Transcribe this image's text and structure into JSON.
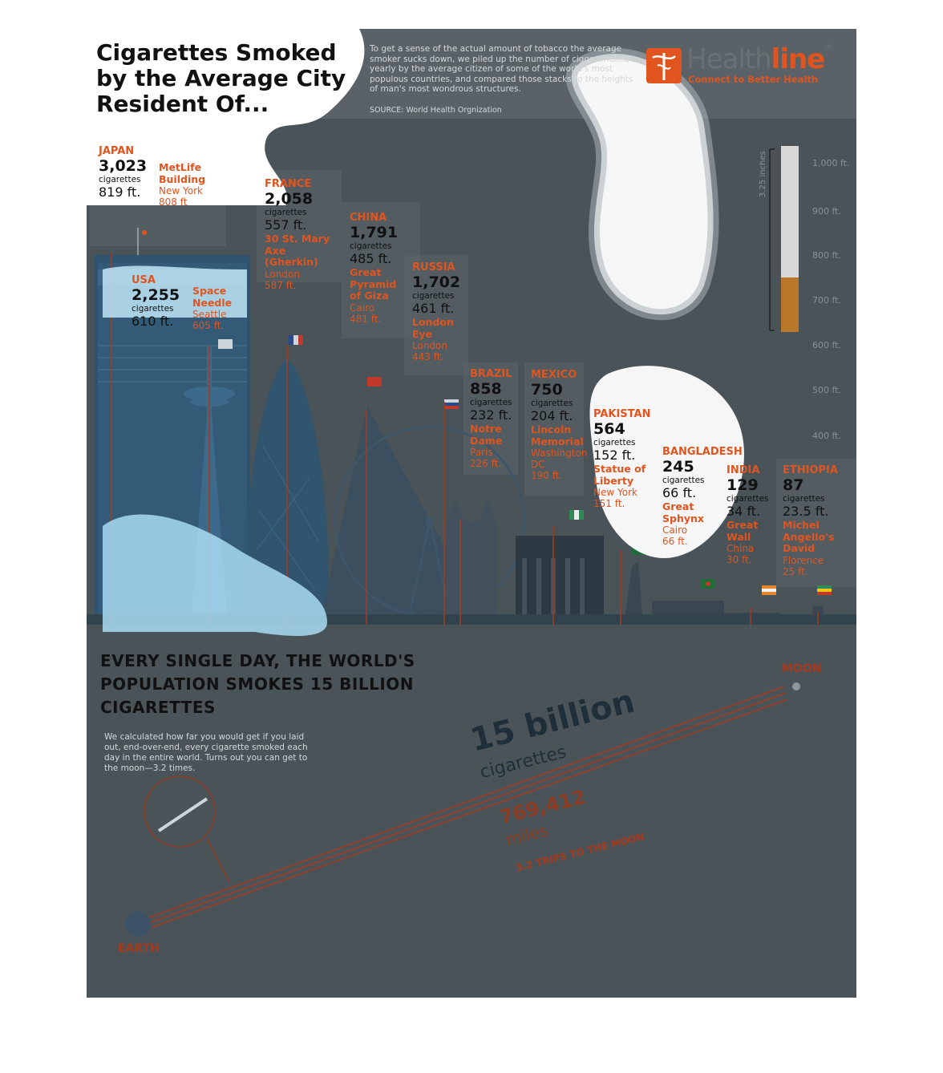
{
  "header": {
    "title": "Cigarettes Smoked by the Average City Resident Of...",
    "intro": "To get a sense of the actual amount of tobacco the average smoker sucks down, we piled up the number of ciggs smoked yearly by the average citizen of some of the world's most populous countries, and compared those stacks to the heights of man's most wondrous structures.",
    "source": "SOURCE: World Health Orgnization"
  },
  "logo": {
    "name_part1": "Health",
    "name_part2": "line",
    "reg": "®",
    "tagline": "Connect to Better Health"
  },
  "colors": {
    "accent": "#e1541e",
    "panel": "#4a5358",
    "dark_red": "#a63a1e"
  },
  "ruler": {
    "label": "3.25 inches",
    "ticks": [
      "1,000 ft.",
      "900 ft.",
      "800 ft.",
      "700 ft.",
      "600 ft.",
      "500 ft.",
      "400 ft."
    ]
  },
  "countries": [
    {
      "country": "JAPAN",
      "count": "3,023",
      "cig": "cigarettes",
      "height": "819 ft.",
      "building": "MetLife Building",
      "city": "New York",
      "bheight": "808 ft"
    },
    {
      "country": "USA",
      "count": "2,255",
      "cig": "cigarettes",
      "height": "610 ft.",
      "building": "Space Needle",
      "city": "Seattle",
      "bheight": "605 ft."
    },
    {
      "country": "FRANCE",
      "count": "2,058",
      "cig": "cigarettes",
      "height": "557 ft.",
      "building": "30 St. Mary Axe (Gherkin)",
      "city": "London",
      "bheight": "587 ft."
    },
    {
      "country": "CHINA",
      "count": "1,791",
      "cig": "cigarettes",
      "height": "485 ft.",
      "building": "Great Pyramid of Giza",
      "city": "Cairo",
      "bheight": "481 ft."
    },
    {
      "country": "RUSSIA",
      "count": "1,702",
      "cig": "cigarettes",
      "height": "461 ft.",
      "building": "London Eye",
      "city": "London",
      "bheight": "443 ft."
    },
    {
      "country": "BRAZIL",
      "count": "858",
      "cig": "cigarettes",
      "height": "232 ft.",
      "building": "Notre Dame",
      "city": "Paris",
      "bheight": "226 ft."
    },
    {
      "country": "MEXICO",
      "count": "750",
      "cig": "cigarettes",
      "height": "204 ft.",
      "building": "Lincoln Memorial",
      "city": "Washington DC",
      "bheight": "190 ft."
    },
    {
      "country": "PAKISTAN",
      "count": "564",
      "cig": "cigarettes",
      "height": "152 ft.",
      "building": "Statue of Liberty",
      "city": "New York",
      "bheight": "151 ft."
    },
    {
      "country": "BANGLADESH",
      "count": "245",
      "cig": "cigarettes",
      "height": "66 ft.",
      "building": "Great Sphynx",
      "city": "Cairo",
      "bheight": "66 ft."
    },
    {
      "country": "INDIA",
      "count": "129",
      "cig": "cigarettes",
      "height": "34 ft.",
      "building": "Great Wall",
      "city": "China",
      "bheight": "30 ft."
    },
    {
      "country": "ETHIOPIA",
      "count": "87",
      "cig": "cigarettes",
      "height": "23.5 ft.",
      "building": "Michel Angello's David",
      "city": "Florence",
      "bheight": "25 ft."
    }
  ],
  "every_day": {
    "heading": "EVERY SINGLE DAY, THE WORLD'S  POPULATION SMOKES 15 BILLION CIGARETTES",
    "body": "We calculated how far you would get if you laid out, end-over-end, every cigarette smoked each day in the entire world. Turns out you can get to the moon—3.2 times.",
    "moon": "MOON",
    "earth": "EARTH",
    "big_number": "15 billion",
    "big_unit": "cigarettes",
    "miles_number": "769,412",
    "miles_unit": "miles",
    "trips": "3.2 TRIPS TO THE MOON"
  }
}
